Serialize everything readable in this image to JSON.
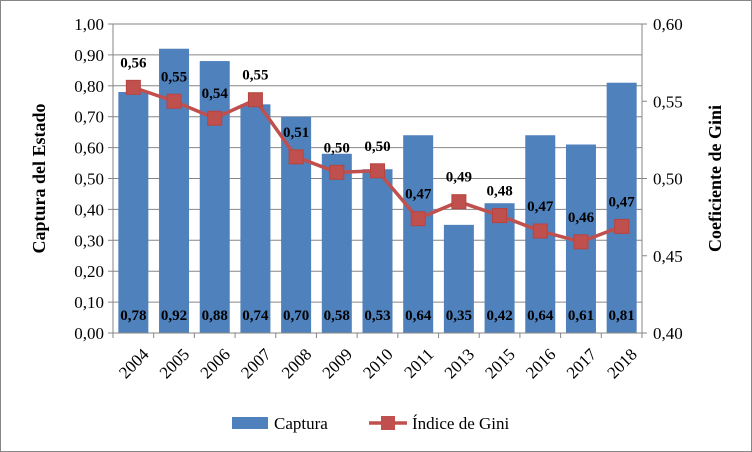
{
  "chart_data": {
    "type": "bar+line",
    "categories": [
      "2004",
      "2005",
      "2006",
      "2007",
      "2008",
      "2009",
      "2010",
      "2011",
      "2013",
      "2015",
      "2016",
      "2017",
      "2018"
    ],
    "series": [
      {
        "name": "Captura",
        "type": "bar",
        "axis": "left",
        "color": "#4F81BD",
        "values": [
          0.78,
          0.92,
          0.88,
          0.74,
          0.7,
          0.58,
          0.53,
          0.64,
          0.35,
          0.42,
          0.64,
          0.61,
          0.81
        ],
        "labels": [
          "0,78",
          "0,92",
          "0,88",
          "0,74",
          "0,70",
          "0,58",
          "0,53",
          "0,64",
          "0,35",
          "0,42",
          "0,64",
          "0,61",
          "0,81"
        ]
      },
      {
        "name": "Índice de Gini",
        "type": "line",
        "axis": "right",
        "color": "#C0504D",
        "marker": "square",
        "values": [
          0.559,
          0.55,
          0.539,
          0.551,
          0.514,
          0.504,
          0.505,
          0.474,
          0.485,
          0.476,
          0.466,
          0.459,
          0.469
        ],
        "labels": [
          "0,56",
          "0,55",
          "0,54",
          "0,55",
          "0,51",
          "0,50",
          "0,50",
          "0,47",
          "0,49",
          "0,48",
          "0,47",
          "0,46",
          "0,47"
        ]
      }
    ],
    "ylabel": "Captura del Estado",
    "y2label": "Coeficiente de Gini",
    "ylim": [
      0,
      1
    ],
    "y2lim": [
      0.4,
      0.6
    ],
    "yticks": [
      "0,00",
      "0,10",
      "0,20",
      "0,30",
      "0,40",
      "0,50",
      "0,60",
      "0,70",
      "0,80",
      "0,90",
      "1,00"
    ],
    "y2ticks": [
      "0,40",
      "0,45",
      "0,50",
      "0,55",
      "0,60"
    ],
    "grid": true,
    "legend": "bottom"
  }
}
